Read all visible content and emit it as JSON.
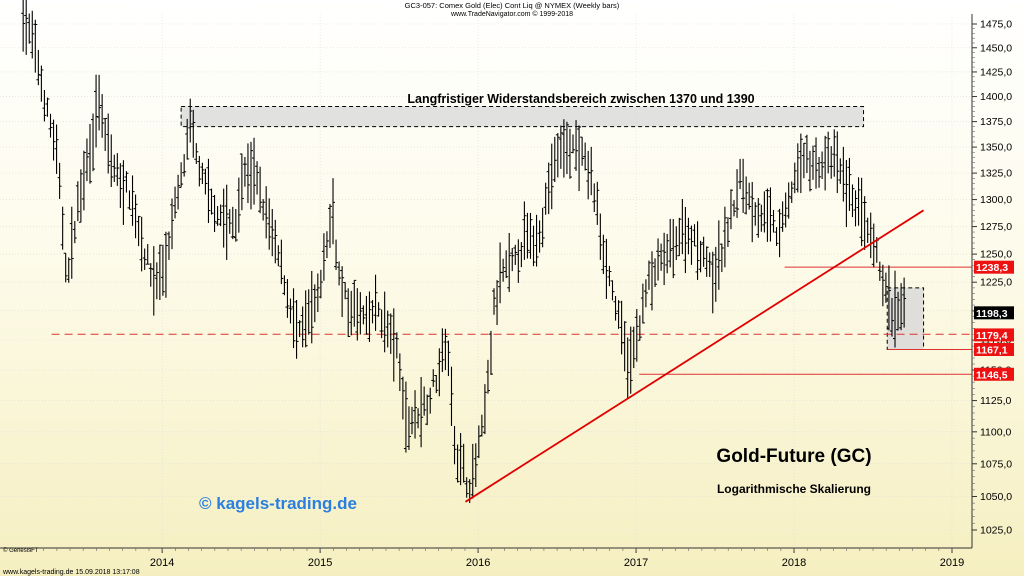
{
  "header": {
    "title": "GC3-057:  Comex Gold (Elec) Cont Liq @ NYMEX  (Weekly bars)",
    "copyright": "www.TradeNavigator.com © 1999-2018"
  },
  "footer": {
    "left": "www.kagels-trading.de   15.09.2018 13:17:08",
    "genesis": "© GenesisFT"
  },
  "colors": {
    "bar": "#000000",
    "trendline": "#e00000",
    "level_line": "#e03030",
    "label_bg": "#ee1111",
    "zone_fill": "#d9d9d9",
    "watermark": "#2a7fe0",
    "bg_top": "#ffffff",
    "bg_bottom": "#f6f1c4"
  },
  "chart_data": {
    "type": "ohlc",
    "title": "GC3-057:  Comex Gold (Elec) Cont Liq @ NYMEX  (Weekly bars)",
    "scale": "log",
    "x_domain": [
      2013.1,
      2019.0
    ],
    "ylim": [
      1010,
      1490
    ],
    "x_ticks": [
      {
        "x": 2014.0,
        "label": "2014"
      },
      {
        "x": 2015.0,
        "label": "2015"
      },
      {
        "x": 2016.0,
        "label": "2016"
      },
      {
        "x": 2017.0,
        "label": "2017"
      },
      {
        "x": 2018.0,
        "label": "2018"
      },
      {
        "x": 2019.0,
        "label": "2019"
      }
    ],
    "y_ticks": [
      {
        "v": 1025,
        "label": "1025,0"
      },
      {
        "v": 1050,
        "label": "1050,0"
      },
      {
        "v": 1075,
        "label": "1075,0"
      },
      {
        "v": 1100,
        "label": "1100,0"
      },
      {
        "v": 1125,
        "label": "1125,0"
      },
      {
        "v": 1150,
        "label": "1150,0"
      },
      {
        "v": 1175,
        "label": "1175,0"
      },
      {
        "v": 1200,
        "label": "1200,0"
      },
      {
        "v": 1225,
        "label": "1225,0"
      },
      {
        "v": 1250,
        "label": "1250,0"
      },
      {
        "v": 1275,
        "label": "1275,0"
      },
      {
        "v": 1300,
        "label": "1300,0"
      },
      {
        "v": 1325,
        "label": "1325,0"
      },
      {
        "v": 1350,
        "label": "1350,0"
      },
      {
        "v": 1375,
        "label": "1375,0"
      },
      {
        "v": 1400,
        "label": "1400,0"
      },
      {
        "v": 1425,
        "label": "1425,0"
      },
      {
        "v": 1450,
        "label": "1450,0"
      },
      {
        "v": 1475,
        "label": "1475,0"
      }
    ],
    "bars_anchor_path": [
      [
        2013.12,
        1480
      ],
      [
        2013.18,
        1460
      ],
      [
        2013.25,
        1400
      ],
      [
        2013.33,
        1345
      ],
      [
        2013.4,
        1225
      ],
      [
        2013.45,
        1280
      ],
      [
        2013.5,
        1320
      ],
      [
        2013.55,
        1355
      ],
      [
        2013.6,
        1395
      ],
      [
        2013.65,
        1350
      ],
      [
        2013.72,
        1320
      ],
      [
        2013.8,
        1305
      ],
      [
        2013.88,
        1255
      ],
      [
        2013.95,
        1225
      ],
      [
        2014.02,
        1240
      ],
      [
        2014.08,
        1290
      ],
      [
        2014.14,
        1335
      ],
      [
        2014.18,
        1370
      ],
      [
        2014.25,
        1320
      ],
      [
        2014.32,
        1295
      ],
      [
        2014.4,
        1280
      ],
      [
        2014.46,
        1275
      ],
      [
        2014.52,
        1325
      ],
      [
        2014.58,
        1325
      ],
      [
        2014.63,
        1300
      ],
      [
        2014.7,
        1265
      ],
      [
        2014.76,
        1235
      ],
      [
        2014.82,
        1200
      ],
      [
        2014.86,
        1175
      ],
      [
        2014.92,
        1195
      ],
      [
        2014.98,
        1205
      ],
      [
        2015.04,
        1260
      ],
      [
        2015.08,
        1290
      ],
      [
        2015.12,
        1230
      ],
      [
        2015.18,
        1200
      ],
      [
        2015.24,
        1200
      ],
      [
        2015.3,
        1190
      ],
      [
        2015.36,
        1205
      ],
      [
        2015.42,
        1185
      ],
      [
        2015.48,
        1170
      ],
      [
        2015.55,
        1105
      ],
      [
        2015.62,
        1115
      ],
      [
        2015.68,
        1125
      ],
      [
        2015.74,
        1145
      ],
      [
        2015.8,
        1175
      ],
      [
        2015.86,
        1085
      ],
      [
        2015.92,
        1065
      ],
      [
        2015.96,
        1060
      ],
      [
        2016.02,
        1095
      ],
      [
        2016.06,
        1135
      ],
      [
        2016.1,
        1200
      ],
      [
        2016.16,
        1235
      ],
      [
        2016.22,
        1240
      ],
      [
        2016.3,
        1265
      ],
      [
        2016.36,
        1260
      ],
      [
        2016.42,
        1290
      ],
      [
        2016.48,
        1335
      ],
      [
        2016.54,
        1350
      ],
      [
        2016.6,
        1350
      ],
      [
        2016.66,
        1340
      ],
      [
        2016.72,
        1320
      ],
      [
        2016.78,
        1265
      ],
      [
        2016.84,
        1225
      ],
      [
        2016.9,
        1185
      ],
      [
        2016.96,
        1150
      ],
      [
        2017.02,
        1190
      ],
      [
        2017.08,
        1225
      ],
      [
        2017.14,
        1240
      ],
      [
        2017.2,
        1250
      ],
      [
        2017.26,
        1265
      ],
      [
        2017.32,
        1270
      ],
      [
        2017.38,
        1260
      ],
      [
        2017.44,
        1250
      ],
      [
        2017.48,
        1225
      ],
      [
        2017.54,
        1250
      ],
      [
        2017.6,
        1285
      ],
      [
        2017.66,
        1320
      ],
      [
        2017.72,
        1300
      ],
      [
        2017.78,
        1285
      ],
      [
        2017.84,
        1285
      ],
      [
        2017.9,
        1265
      ],
      [
        2017.96,
        1295
      ],
      [
        2018.02,
        1330
      ],
      [
        2018.08,
        1340
      ],
      [
        2018.14,
        1330
      ],
      [
        2018.2,
        1335
      ],
      [
        2018.26,
        1340
      ],
      [
        2018.32,
        1315
      ],
      [
        2018.38,
        1300
      ],
      [
        2018.42,
        1290
      ],
      [
        2018.46,
        1270
      ],
      [
        2018.5,
        1255
      ],
      [
        2018.54,
        1240
      ],
      [
        2018.58,
        1215
      ],
      [
        2018.62,
        1200
      ],
      [
        2018.66,
        1195
      ],
      [
        2018.7,
        1205
      ]
    ],
    "annotations": {
      "resistance_zone": {
        "label": "Langfristiger Widerstandsbereich zwischen 1370 und 1390",
        "x_start": 2014.12,
        "x_end": 2018.44,
        "y_low": 1370,
        "y_high": 1390
      },
      "support_zone": {
        "x_start": 2018.59,
        "x_end": 2018.82,
        "y_low": 1167.1,
        "y_high": 1220
      },
      "trendline": {
        "from": {
          "x": 2015.92,
          "y": 1046
        },
        "to": {
          "x": 2018.82,
          "y": 1290
        }
      },
      "dashed_level": {
        "value": 1180,
        "x_start": 2013.3
      },
      "levels": [
        {
          "value": 1238.3,
          "label": "1238,3",
          "x_start": 2017.94,
          "style": "red"
        },
        {
          "value": 1198.3,
          "label": "1198,3",
          "style": "black"
        },
        {
          "value": 1179.4,
          "label": "1179,4",
          "style": "red"
        },
        {
          "value": 1167.1,
          "label": "1167,1",
          "x_start": 2018.59,
          "style": "red"
        },
        {
          "value": 1146.5,
          "label": "1146,5",
          "x_start": 2017.02,
          "style": "red"
        }
      ],
      "title_big": "Gold-Future (GC)",
      "subtitle": "Logarithmische Skalierung",
      "watermark": "© kagels-trading.de"
    }
  }
}
